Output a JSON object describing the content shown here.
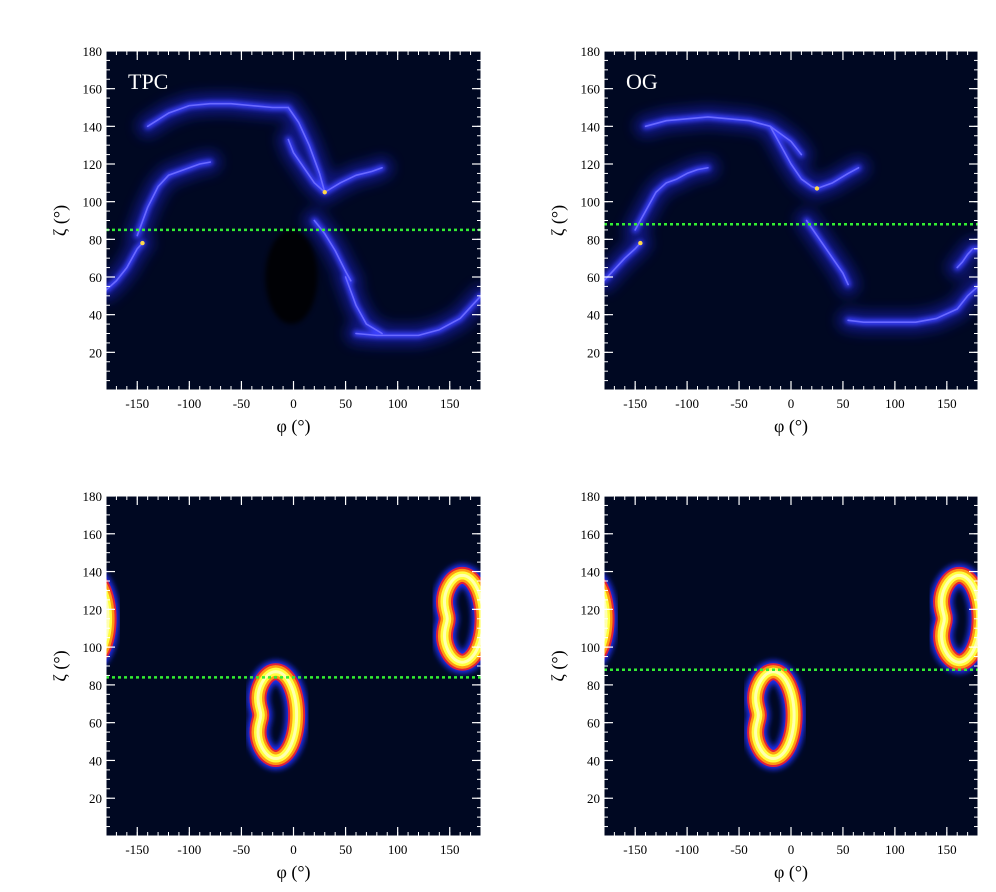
{
  "chart_data": [
    {
      "type": "heatmap",
      "panel_label": "TPC",
      "xlabel": "φ (°)",
      "ylabel": "ζ (°)",
      "xlim": [
        -180,
        180
      ],
      "ylim": [
        0,
        180
      ],
      "xticks": [
        -150,
        -100,
        -50,
        0,
        50,
        100,
        150
      ],
      "yticks": [
        20,
        40,
        60,
        80,
        100,
        120,
        140,
        160,
        180
      ],
      "reference_line_zeta": 85,
      "reference_line_color": "#33ee33",
      "background_color": "#000822",
      "caustic_curves": [
        {
          "phi": [
            -180,
            -170,
            -160,
            -150,
            -145
          ],
          "zeta": [
            53,
            58,
            65,
            75,
            78
          ]
        },
        {
          "phi": [
            -150,
            -140,
            -130,
            -120,
            -110,
            -100,
            -90,
            -80
          ],
          "zeta": [
            82,
            97,
            108,
            114,
            116,
            118,
            120,
            121
          ]
        },
        {
          "phi": [
            -140,
            -120,
            -100,
            -80,
            -60,
            -40,
            -20,
            -5
          ],
          "zeta": [
            140,
            147,
            151,
            152,
            152,
            151,
            150,
            150
          ]
        },
        {
          "phi": [
            -5,
            5,
            15,
            25,
            30
          ],
          "zeta": [
            150,
            142,
            130,
            115,
            105
          ]
        },
        {
          "phi": [
            -5,
            0,
            10,
            20,
            30
          ],
          "zeta": [
            133,
            126,
            118,
            110,
            105
          ]
        },
        {
          "phi": [
            30,
            45,
            60,
            75,
            85
          ],
          "zeta": [
            105,
            110,
            114,
            116,
            118
          ]
        },
        {
          "phi": [
            20,
            30,
            40,
            50,
            55
          ],
          "zeta": [
            90,
            83,
            74,
            63,
            58
          ]
        },
        {
          "phi": [
            60,
            80,
            100,
            120,
            140,
            160,
            180
          ],
          "zeta": [
            30,
            29,
            29,
            29,
            32,
            38,
            50
          ]
        },
        {
          "phi": [
            50,
            60,
            70,
            85
          ],
          "zeta": [
            60,
            45,
            35,
            30
          ]
        }
      ],
      "dark_regions": [
        {
          "phi": -2,
          "zeta": 60,
          "rphi": 25,
          "rzeta": 25
        }
      ]
    },
    {
      "type": "heatmap",
      "panel_label": "OG",
      "xlabel": "φ (°)",
      "ylabel": "ζ (°)",
      "xlim": [
        -180,
        180
      ],
      "ylim": [
        0,
        180
      ],
      "xticks": [
        -150,
        -100,
        -50,
        0,
        50,
        100,
        150
      ],
      "yticks": [
        20,
        40,
        60,
        80,
        100,
        120,
        140,
        160,
        180
      ],
      "reference_line_zeta": 88,
      "reference_line_color": "#33ee33",
      "background_color": "#000822",
      "caustic_curves": [
        {
          "phi": [
            -180,
            -170,
            -160,
            -150,
            -145
          ],
          "zeta": [
            58,
            64,
            70,
            75,
            78
          ]
        },
        {
          "phi": [
            -150,
            -140,
            -130,
            -120,
            -110,
            -100,
            -90,
            -80
          ],
          "zeta": [
            85,
            95,
            105,
            110,
            112,
            115,
            117,
            118
          ]
        },
        {
          "phi": [
            -140,
            -120,
            -100,
            -80,
            -60,
            -40,
            -20,
            0,
            10
          ],
          "zeta": [
            140,
            143,
            144,
            145,
            144,
            143,
            140,
            132,
            125
          ]
        },
        {
          "phi": [
            -20,
            -10,
            0,
            10,
            20,
            25
          ],
          "zeta": [
            140,
            130,
            120,
            112,
            108,
            107
          ]
        },
        {
          "phi": [
            25,
            40,
            55,
            65
          ],
          "zeta": [
            107,
            110,
            115,
            118
          ]
        },
        {
          "phi": [
            15,
            25,
            40,
            50,
            55
          ],
          "zeta": [
            90,
            82,
            70,
            62,
            56
          ]
        },
        {
          "phi": [
            55,
            70,
            85,
            100,
            120,
            140,
            160,
            170,
            180
          ],
          "zeta": [
            37,
            36,
            36,
            36,
            36,
            38,
            43,
            50,
            55
          ]
        },
        {
          "phi": [
            160,
            165,
            170,
            175,
            180
          ],
          "zeta": [
            65,
            68,
            72,
            75,
            75
          ]
        }
      ],
      "dark_regions": []
    },
    {
      "type": "heatmap",
      "panel_label": "",
      "xlabel": "φ (°)",
      "ylabel": "ζ (°)",
      "xlim": [
        -180,
        180
      ],
      "ylim": [
        0,
        180
      ],
      "xticks": [
        -150,
        -100,
        -50,
        0,
        50,
        100,
        150
      ],
      "yticks": [
        20,
        40,
        60,
        80,
        100,
        120,
        140,
        160,
        180
      ],
      "reference_line_zeta": 84,
      "reference_line_color": "#33ee33",
      "background_color": "#000822",
      "rings": [
        {
          "center_phi": -17,
          "center_zeta": 64,
          "r_phi": 20,
          "r_zeta": 23,
          "notch_angle": 180,
          "notch_depth": 0.28
        },
        {
          "center_phi": 162,
          "center_zeta": 115,
          "r_phi": 20,
          "r_zeta": 23,
          "notch_angle": 180,
          "notch_depth": 0.28
        },
        {
          "center_phi": -198,
          "center_zeta": 115,
          "r_phi": 20,
          "r_zeta": 23,
          "notch_angle": 180,
          "notch_depth": 0.28
        }
      ]
    },
    {
      "type": "heatmap",
      "panel_label": "",
      "xlabel": "φ (°)",
      "ylabel": "ζ (°)",
      "xlim": [
        -180,
        180
      ],
      "ylim": [
        0,
        180
      ],
      "xticks": [
        -150,
        -100,
        -50,
        0,
        50,
        100,
        150
      ],
      "yticks": [
        20,
        40,
        60,
        80,
        100,
        120,
        140,
        160,
        180
      ],
      "reference_line_zeta": 88,
      "reference_line_color": "#33ee33",
      "background_color": "#000822",
      "rings": [
        {
          "center_phi": -17,
          "center_zeta": 64,
          "r_phi": 20,
          "r_zeta": 23,
          "notch_angle": 180,
          "notch_depth": 0.28
        },
        {
          "center_phi": 162,
          "center_zeta": 115,
          "r_phi": 20,
          "r_zeta": 23,
          "notch_angle": 180,
          "notch_depth": 0.28
        },
        {
          "center_phi": -198,
          "center_zeta": 115,
          "r_phi": 20,
          "r_zeta": 23,
          "notch_angle": 180,
          "notch_depth": 0.28
        }
      ]
    }
  ]
}
